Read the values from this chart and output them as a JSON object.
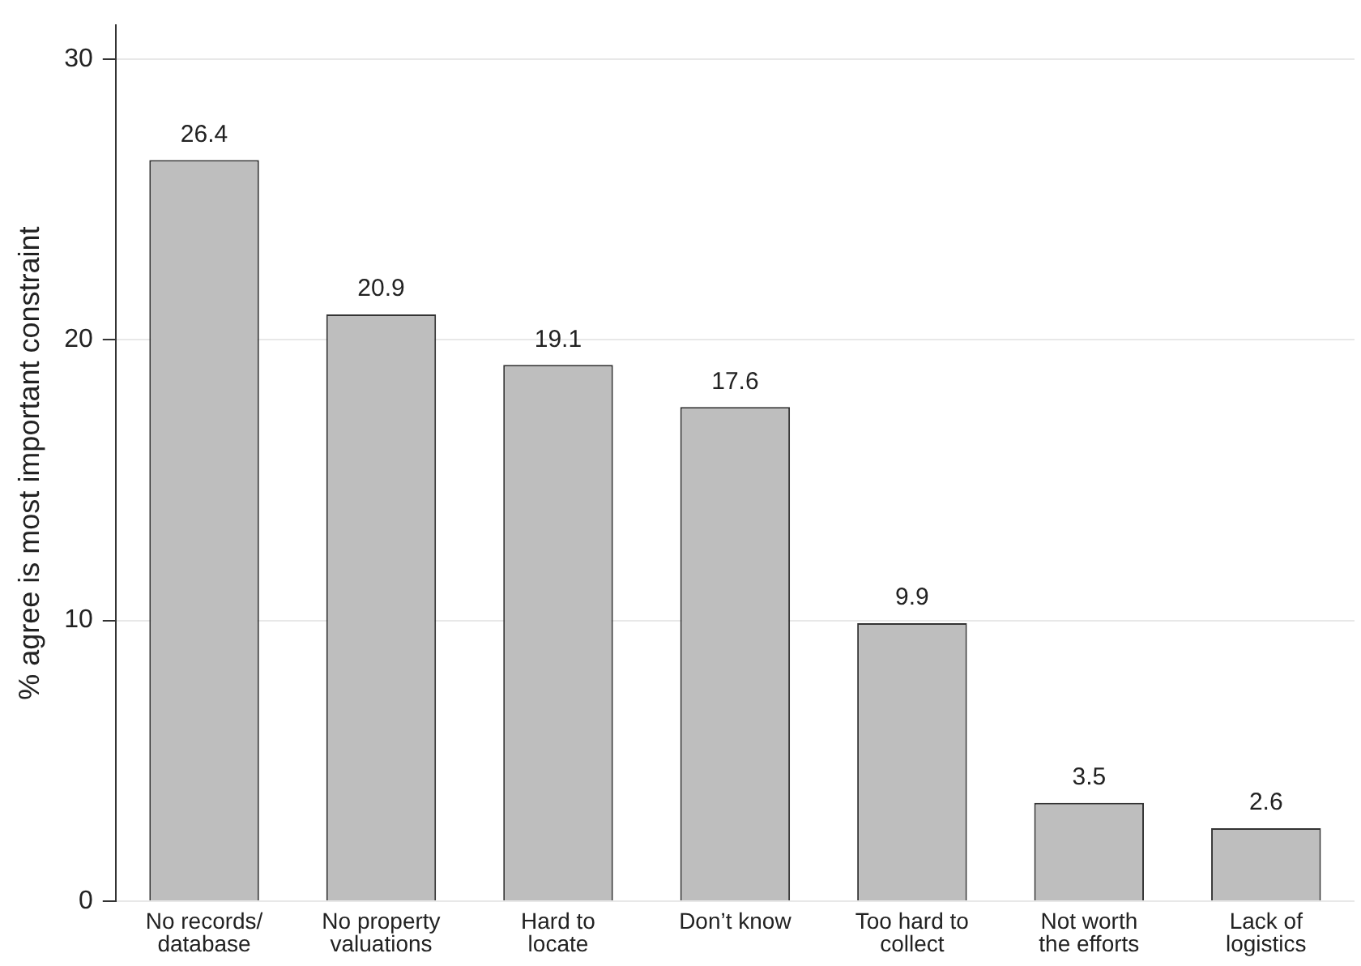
{
  "chart_data": {
    "type": "bar",
    "ylabel": "% agree is most important constraint",
    "categories": [
      "No records/\ndatabase",
      "No property\nvaluations",
      "Hard to\nlocate",
      "Don’t know",
      "Too hard to\ncollect",
      "Not worth\nthe efforts",
      "Lack of\nlogistics"
    ],
    "values": [
      26.4,
      20.9,
      19.1,
      17.6,
      9.9,
      3.5,
      2.6
    ],
    "color": "#bebebe",
    "ylim": [
      0,
      31.2
    ],
    "yticks": [
      0,
      10,
      20,
      30
    ],
    "grid": "y",
    "data_labels": true,
    "legend": false
  }
}
